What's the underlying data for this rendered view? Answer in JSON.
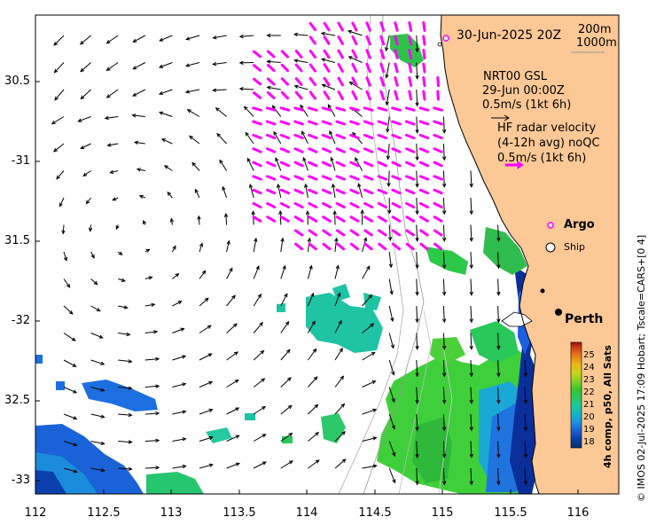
{
  "map": {
    "date_label": "30-Jun-2025 20Z",
    "isobath_shallow": "200m",
    "isobath_deep": "1000m",
    "model_name": "NRT00 GSL",
    "model_time": "29-Jun 00:00Z",
    "model_scale": "0.5m/s (1kt 6h)",
    "hf_title": "HF radar velocity",
    "hf_subtitle": "(4-12h avg) noQC",
    "hf_scale": "0.5m/s (1kt 6h)",
    "argo_label": "Argo",
    "ship_label": "Ship",
    "city_label": "Perth",
    "colorbar_title": "4h comp, p50, All Sats",
    "credit": "© IMOS 02-Jul-2025 17:09 Hobart; Tscale=CARS+[0 4]"
  },
  "axes": {
    "lon_ticks": [
      "112",
      "112.5",
      "113",
      "113.5",
      "114",
      "114.5",
      "115",
      "115.5",
      "116"
    ],
    "lat_ticks": [
      "30.5",
      "-31",
      "31.5",
      "-32",
      "32.5",
      "-33"
    ]
  },
  "colorbar": {
    "ticks": [
      "25",
      "24",
      "23",
      "22",
      "21",
      "20",
      "19",
      "18"
    ],
    "stops": [
      "#08306b",
      "#0b3ea8",
      "#1a5fd6",
      "#1d8fe0",
      "#10b5c8",
      "#1cc9a0",
      "#2cc95a",
      "#33c72e",
      "#7fd12a",
      "#c9d61c",
      "#e7b81a",
      "#e5801a",
      "#d6451a",
      "#9b1111"
    ]
  },
  "colors": {
    "land": "#fbc896",
    "radar_arrow": "#ff00ff",
    "model_arrow": "#000000"
  }
}
